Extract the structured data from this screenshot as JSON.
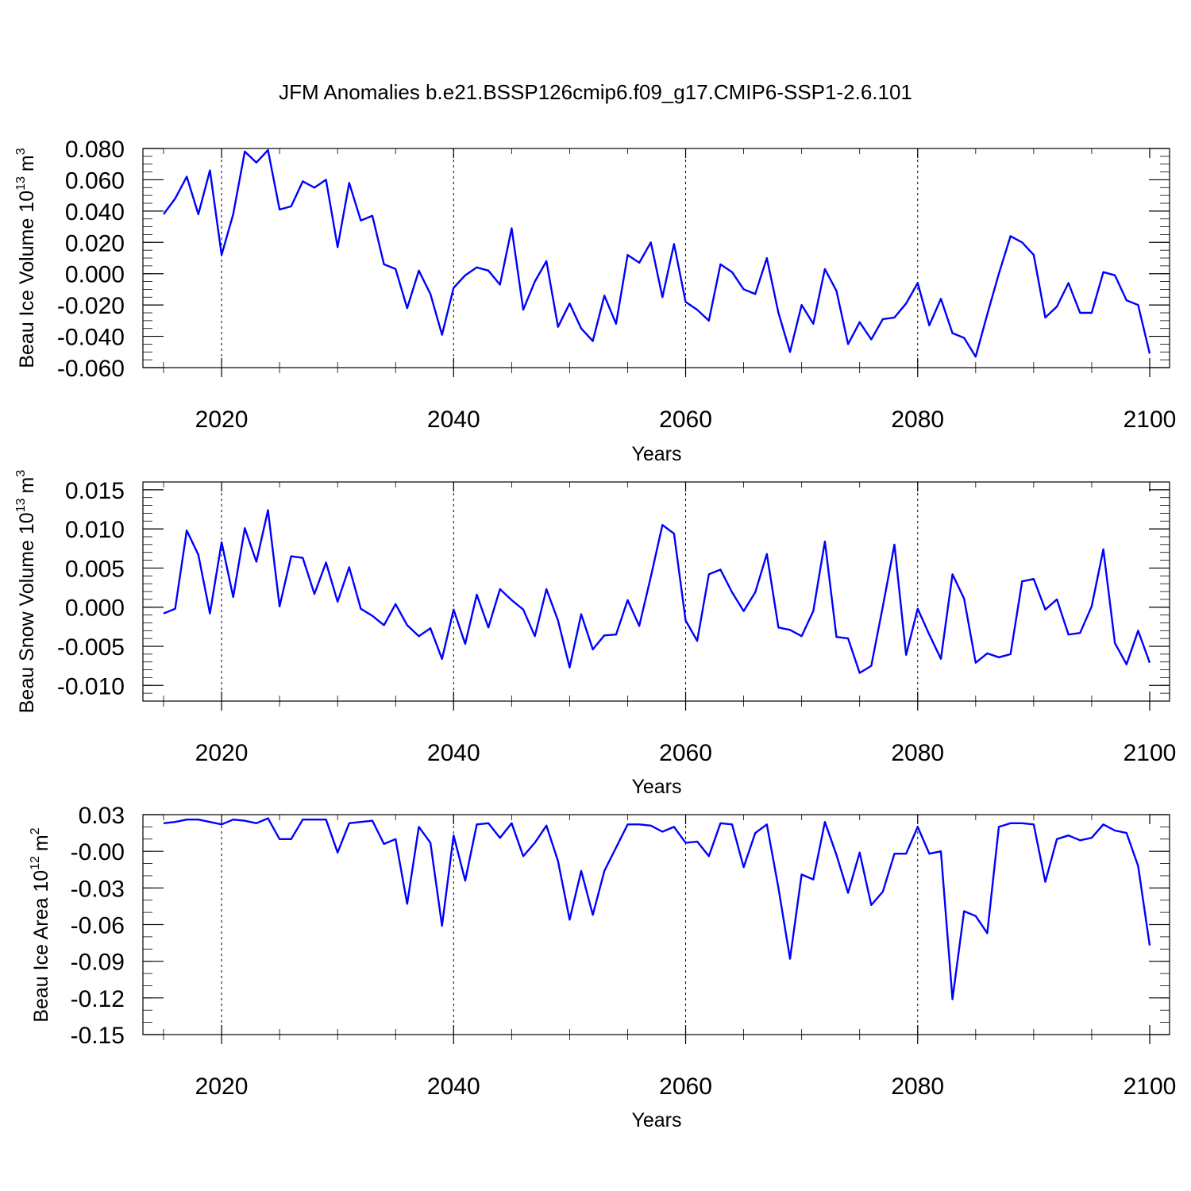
{
  "chart_data": {
    "type": "line",
    "title": "JFM Anomalies b.e21.BSSP126cmip6.f09_g17.CMIP6-SSP1-2.6.101",
    "line_color": "#0000ff",
    "x_start": 2015,
    "x_end": 2100,
    "xlim": [
      2015,
      2100
    ],
    "x_major_ticks": [
      2020,
      2040,
      2060,
      2080,
      2100
    ],
    "x_tick_labels": [
      "2020",
      "2040",
      "2060",
      "2080",
      "2100"
    ],
    "panels": [
      {
        "id": "ice-volume",
        "xlabel": "Years",
        "ylabel": "Beau Ice Volume 10",
        "ylabel_exp": "13",
        "ylabel_unit": "m",
        "ylabel_unit_exp": "3",
        "ylim": [
          -0.06,
          0.08
        ],
        "yticks": [
          0.08,
          0.06,
          0.04,
          0.02,
          0.0,
          -0.02,
          -0.04,
          -0.06
        ],
        "ytick_labels": [
          "0.080",
          "0.060",
          "0.040",
          "0.020",
          "0.000",
          "-0.020",
          "-0.040",
          "-0.060"
        ],
        "y_minor_step": 0.005,
        "values": [
          0.038,
          0.048,
          0.062,
          0.038,
          0.066,
          0.012,
          0.038,
          0.078,
          0.071,
          0.079,
          0.041,
          0.043,
          0.059,
          0.055,
          0.06,
          0.017,
          0.058,
          0.034,
          0.037,
          0.006,
          0.003,
          -0.022,
          0.002,
          -0.013,
          -0.039,
          -0.009,
          -0.001,
          0.004,
          0.002,
          -0.007,
          0.029,
          -0.023,
          -0.005,
          0.008,
          -0.034,
          -0.019,
          -0.035,
          -0.043,
          -0.014,
          -0.032,
          0.012,
          0.007,
          0.02,
          -0.015,
          0.019,
          -0.018,
          -0.023,
          -0.03,
          0.006,
          0.001,
          -0.01,
          -0.013,
          0.01,
          -0.025,
          -0.05,
          -0.02,
          -0.032,
          0.003,
          -0.011,
          -0.045,
          -0.031,
          -0.042,
          -0.029,
          -0.028,
          -0.019,
          -0.006,
          -0.033,
          -0.016,
          -0.038,
          -0.041,
          -0.053,
          -0.026,
          0.0,
          0.024,
          0.02,
          0.012,
          -0.028,
          -0.021,
          -0.006,
          -0.025,
          -0.025,
          0.001,
          -0.001,
          -0.017,
          -0.02,
          -0.051
        ]
      },
      {
        "id": "snow-volume",
        "xlabel": "Years",
        "ylabel": "Beau Snow Volume 10",
        "ylabel_exp": "13",
        "ylabel_unit": "m",
        "ylabel_unit_exp": "3",
        "ylim": [
          -0.012,
          0.016
        ],
        "yticks": [
          0.015,
          0.01,
          0.005,
          0.0,
          -0.005,
          -0.01
        ],
        "ytick_labels": [
          "0.015",
          "0.010",
          "0.005",
          "0.000",
          "-0.005",
          "-0.010"
        ],
        "y_minor_step": 0.001,
        "values": [
          -0.0008,
          -0.0002,
          0.0098,
          0.0067,
          -0.0008,
          0.0083,
          0.0013,
          0.0101,
          0.0058,
          0.0124,
          0.0001,
          0.0065,
          0.0063,
          0.0017,
          0.0057,
          0.0007,
          0.0051,
          -0.0002,
          -0.0011,
          -0.0023,
          0.0004,
          -0.0023,
          -0.0037,
          -0.0027,
          -0.0066,
          -0.0003,
          -0.0047,
          0.0016,
          -0.0026,
          0.0023,
          0.0009,
          -0.0003,
          -0.0037,
          0.0023,
          -0.0017,
          -0.0077,
          -0.0009,
          -0.0054,
          -0.0036,
          -0.0035,
          0.0009,
          -0.0024,
          0.0039,
          0.0105,
          0.0094,
          -0.0017,
          -0.0043,
          0.0042,
          0.0048,
          0.0019,
          -0.0005,
          0.0019,
          0.0068,
          -0.0026,
          -0.0029,
          -0.0037,
          -0.0005,
          0.0084,
          -0.0038,
          -0.004,
          -0.0084,
          -0.0075,
          0.0001,
          0.008,
          -0.0061,
          -0.0002,
          -0.0035,
          -0.0066,
          0.0042,
          0.0011,
          -0.0071,
          -0.0059,
          -0.0064,
          -0.006,
          0.0033,
          0.0036,
          -0.0003,
          0.001,
          -0.0035,
          -0.0033,
          0.0001,
          0.0074,
          -0.0046,
          -0.0073,
          -0.003,
          -0.0071
        ]
      },
      {
        "id": "ice-area",
        "xlabel": "Years",
        "ylabel": "Beau Ice Area 10",
        "ylabel_exp": "12",
        "ylabel_unit": "m",
        "ylabel_unit_exp": "2",
        "ylim": [
          -0.15,
          0.03
        ],
        "yticks": [
          0.03,
          0.0,
          -0.03,
          -0.06,
          -0.09,
          -0.12,
          -0.15
        ],
        "ytick_labels": [
          "0.03",
          "-0.00",
          "-0.03",
          "-0.06",
          "-0.09",
          "-0.12",
          "-0.15"
        ],
        "y_minor_step": 0.01,
        "values": [
          0.023,
          0.024,
          0.026,
          0.026,
          0.024,
          0.022,
          0.026,
          0.025,
          0.023,
          0.027,
          0.01,
          0.01,
          0.026,
          0.026,
          0.026,
          -0.001,
          0.023,
          0.024,
          0.025,
          0.006,
          0.01,
          -0.043,
          0.02,
          0.007,
          -0.061,
          0.013,
          -0.024,
          0.022,
          0.023,
          0.011,
          0.023,
          -0.004,
          0.007,
          0.021,
          -0.008,
          -0.056,
          -0.016,
          -0.052,
          -0.016,
          0.003,
          0.022,
          0.022,
          0.021,
          0.016,
          0.02,
          0.007,
          0.008,
          -0.004,
          0.023,
          0.022,
          -0.013,
          0.015,
          0.022,
          -0.03,
          -0.088,
          -0.019,
          -0.023,
          0.024,
          -0.003,
          -0.034,
          -0.001,
          -0.044,
          -0.033,
          -0.002,
          -0.002,
          0.02,
          -0.002,
          0.0,
          -0.121,
          -0.049,
          -0.053,
          -0.067,
          0.02,
          0.023,
          0.023,
          0.022,
          -0.025,
          0.01,
          0.013,
          0.009,
          0.011,
          0.022,
          0.017,
          0.015,
          -0.012,
          -0.077
        ]
      }
    ]
  }
}
